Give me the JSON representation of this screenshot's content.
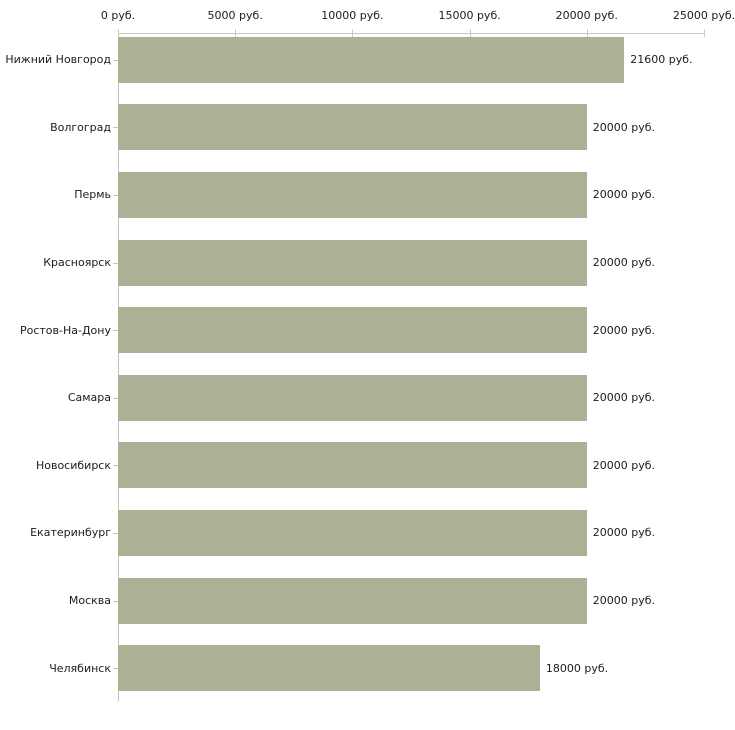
{
  "chart_data": {
    "type": "bar",
    "orientation": "horizontal",
    "title": "",
    "xlabel": "",
    "ylabel": "",
    "categories": [
      "Нижний Новгород",
      "Волгоград",
      "Пермь",
      "Красноярск",
      "Ростов-На-Дону",
      "Самара",
      "Новосибирск",
      "Екатеринбург",
      "Москва",
      "Челябинск"
    ],
    "values": [
      21600,
      20000,
      20000,
      20000,
      20000,
      20000,
      20000,
      20000,
      20000,
      18000
    ],
    "value_labels": [
      "21600 руб.",
      "20000 руб.",
      "20000 руб.",
      "20000 руб.",
      "20000 руб.",
      "20000 руб.",
      "20000 руб.",
      "20000 руб.",
      "20000 руб.",
      "18000 руб."
    ],
    "x_axis": {
      "position": "top",
      "range": [
        0,
        25000
      ],
      "ticks": [
        0,
        5000,
        10000,
        15000,
        20000,
        25000
      ],
      "tick_labels": [
        "0 руб.",
        "5000 руб.",
        "10000 руб.",
        "15000 руб.",
        "20000 руб.",
        "25000 руб."
      ]
    },
    "grid": false,
    "legend": false,
    "bar_color": "#acb196",
    "axis_line_color": "#c9c9c4",
    "tick_color": "#cbcda8",
    "text_color": "#1c1c1c"
  }
}
